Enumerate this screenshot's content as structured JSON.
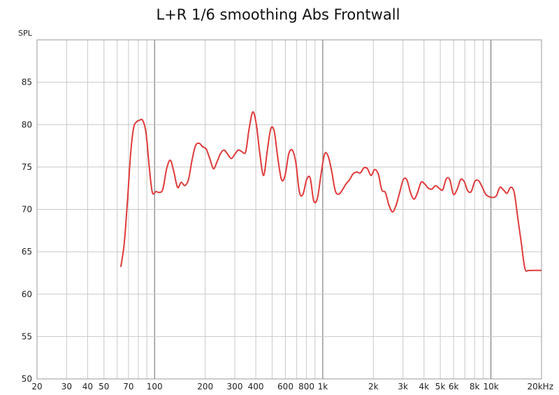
{
  "chart_data": {
    "type": "line",
    "title": "L+R 1/6 smoothing Abs Frontwall",
    "ylabel": "SPL",
    "xlabel": "",
    "x_scale": "log",
    "xlim": [
      20,
      20000
    ],
    "ylim": [
      50,
      90
    ],
    "grid": true,
    "y_ticks": [
      50,
      55,
      60,
      65,
      70,
      75,
      80,
      85
    ],
    "x_ticks": [
      {
        "value": 20,
        "label": "20"
      },
      {
        "value": 30,
        "label": "30"
      },
      {
        "value": 40,
        "label": "40"
      },
      {
        "value": 50,
        "label": "50"
      },
      {
        "value": 70,
        "label": "70"
      },
      {
        "value": 100,
        "label": "100"
      },
      {
        "value": 200,
        "label": "200"
      },
      {
        "value": 300,
        "label": "300"
      },
      {
        "value": 400,
        "label": "400"
      },
      {
        "value": 600,
        "label": "600"
      },
      {
        "value": 800,
        "label": "800"
      },
      {
        "value": 1000,
        "label": "1k"
      },
      {
        "value": 2000,
        "label": "2k"
      },
      {
        "value": 3000,
        "label": "3k"
      },
      {
        "value": 4000,
        "label": "4k"
      },
      {
        "value": 5000,
        "label": "5k"
      },
      {
        "value": 6000,
        "label": "6k"
      },
      {
        "value": 8000,
        "label": "8k"
      },
      {
        "value": 10000,
        "label": "10k"
      },
      {
        "value": 20000,
        "label": "20kHz"
      }
    ],
    "series": [
      {
        "color": "#e03a3a",
        "x": [
          63,
          66,
          69,
          72,
          75,
          78,
          81,
          85,
          89,
          93,
          97,
          102,
          107,
          112,
          118,
          124,
          130,
          137,
          144,
          151,
          159,
          167,
          175,
          184,
          193,
          203,
          213,
          224,
          235,
          247,
          259,
          272,
          286,
          300,
          315,
          331,
          348,
          365,
          384,
          403,
          423,
          445,
          467,
          491,
          515,
          541,
          569,
          597,
          627,
          659,
          692,
          727,
          763,
          802,
          842,
          884,
          929,
          975,
          1024,
          1076,
          1130,
          1187,
          1247,
          1309,
          1375,
          1444,
          1516,
          1593,
          1673,
          1757,
          1845,
          1938,
          2035,
          2137,
          2245,
          2357,
          2476,
          2600,
          2731,
          2868,
          3012,
          3163,
          3322,
          3489,
          3664,
          3848,
          4041,
          4244,
          4457,
          4681,
          4916,
          5163,
          5422,
          5695,
          5980,
          6281,
          6596,
          6927,
          7275,
          7641,
          8024,
          8427,
          8851,
          9295,
          9762,
          10252,
          10767,
          11308,
          11876,
          12472,
          13099,
          13757,
          14448,
          15173,
          15935,
          16735,
          17576,
          18459,
          19386,
          20000
        ],
        "y": [
          63.2,
          66.0,
          71.0,
          76.5,
          79.6,
          80.3,
          80.5,
          80.5,
          79.0,
          75.0,
          72.0,
          72.1,
          72.0,
          72.4,
          74.8,
          75.8,
          74.5,
          72.6,
          73.2,
          72.8,
          73.5,
          75.8,
          77.5,
          77.8,
          77.4,
          77.1,
          76.0,
          74.8,
          75.6,
          76.6,
          77.0,
          76.5,
          76.0,
          76.5,
          77.0,
          76.8,
          76.8,
          79.5,
          81.5,
          80.0,
          76.5,
          74.0,
          76.8,
          79.5,
          79.2,
          76.0,
          73.5,
          74.0,
          76.5,
          77.0,
          75.5,
          72.0,
          71.8,
          73.5,
          73.7,
          71.0,
          71.3,
          74.0,
          76.5,
          76.3,
          74.5,
          72.2,
          71.8,
          72.3,
          73.0,
          73.5,
          74.2,
          74.4,
          74.3,
          74.9,
          74.8,
          74.0,
          74.7,
          74.2,
          72.3,
          72.0,
          70.5,
          69.7,
          70.5,
          72.0,
          73.5,
          73.5,
          72.0,
          71.2,
          72.0,
          73.2,
          73.0,
          72.5,
          72.4,
          72.8,
          72.5,
          72.3,
          73.6,
          73.5,
          71.8,
          72.3,
          73.5,
          73.3,
          72.2,
          72.1,
          73.3,
          73.4,
          72.7,
          71.8,
          71.5,
          71.4,
          71.6,
          72.6,
          72.3,
          71.9,
          72.6,
          72.0,
          69.0,
          66.0,
          63.0,
          62.8,
          62.8,
          62.8,
          62.8,
          62.8
        ]
      }
    ]
  }
}
